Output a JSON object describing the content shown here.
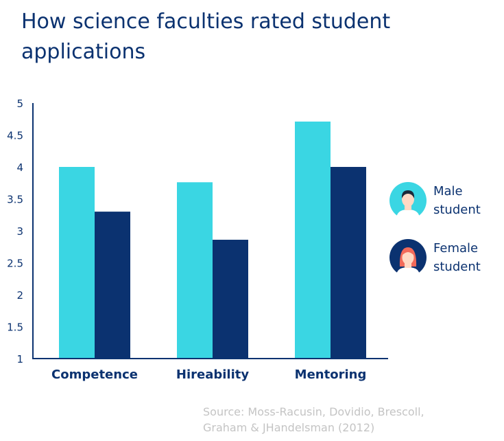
{
  "chart_data": {
    "type": "bar",
    "title": "How science faculties rated student applications",
    "categories": [
      "Competence",
      "Hireability",
      "Mentoring"
    ],
    "series": [
      {
        "name": "Male student",
        "values": [
          4.0,
          3.76,
          4.71
        ],
        "color": "#3ad6e3"
      },
      {
        "name": "Female student",
        "values": [
          3.3,
          2.86,
          4.0
        ],
        "color": "#0b3270"
      }
    ],
    "ylim": [
      1,
      5
    ],
    "yticks": [
      "1",
      "1.5",
      "2",
      "2.5",
      "3",
      "3.5",
      "4",
      "4.5",
      "5"
    ],
    "grid": false,
    "legend_position": "right",
    "source": "Source: Moss-Racusin, Dovidio, Brescoll, Graham & JHandelsman (2012)"
  },
  "legend": {
    "male": {
      "label": "Male\nstudent",
      "icon": "male-avatar-icon"
    },
    "female": {
      "label": "Female\nstudent",
      "icon": "female-avatar-icon"
    }
  },
  "colors": {
    "title": "#0b3270",
    "axis": "#0b3270",
    "source": "#c4c4c4",
    "skin": "#ffd9c4"
  }
}
